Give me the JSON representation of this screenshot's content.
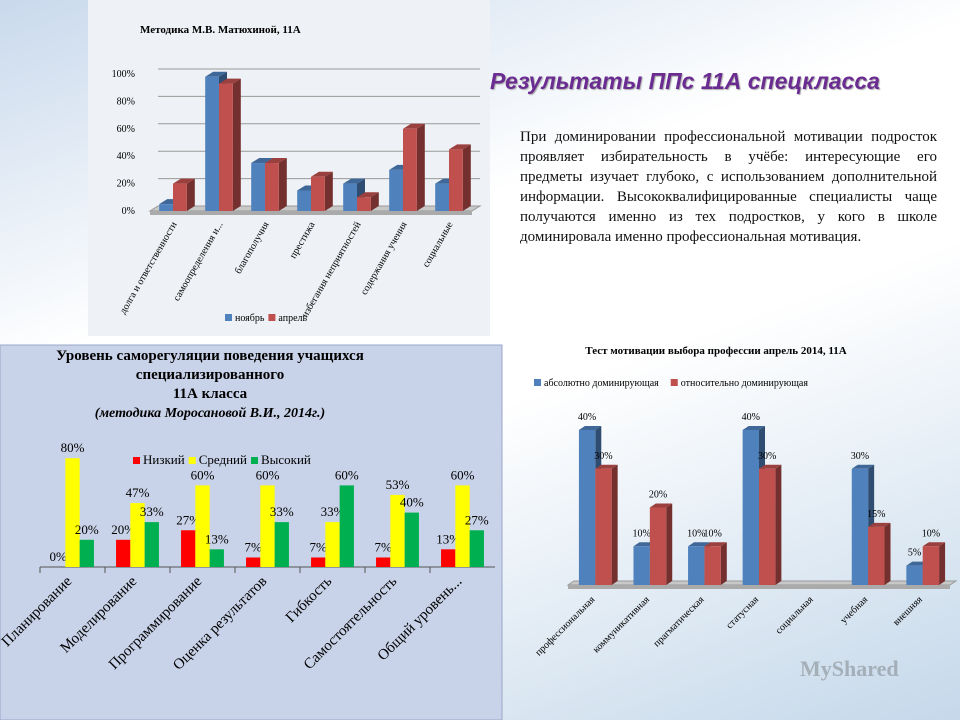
{
  "heading": "Результаты ППс  11А спецкласса",
  "paragraph": "При доминировании профессиональной мотивации подросток проявляет избирательность в учёбе: интересующие его предметы изучает глубоко, с использованием дополнительной информации. Высококвалифицированные специалисты чаще получаются именно из тех подростков, у кого в школе доминировала именно профессиональная мотивация.",
  "watermark": "MyShared",
  "chart_data": [
    {
      "type": "bar3d",
      "title": "Методика М.В. Матюхиной, 11А",
      "categories": [
        "долга и ответственности",
        "самоопределения и...",
        "благополучия",
        "престижа",
        "избегания неприятностей",
        "содержания учения",
        "социальные"
      ],
      "series": [
        {
          "name": "ноябрь",
          "color": "#4f81bd",
          "values": [
            5,
            98,
            35,
            15,
            20,
            30,
            20
          ]
        },
        {
          "name": "апрель",
          "color": "#c0504d",
          "values": [
            20,
            93,
            35,
            25,
            10,
            60,
            45
          ]
        }
      ],
      "ylim": [
        0,
        100
      ],
      "yticks": [
        {
          "value": 0,
          "label": "0%"
        },
        {
          "value": 20,
          "label": "20%"
        },
        {
          "value": 40,
          "label": "40%"
        },
        {
          "value": 60,
          "label": "60%"
        },
        {
          "value": 80,
          "label": "80%"
        },
        {
          "value": 100,
          "label": "100%"
        }
      ],
      "grid": true,
      "legend": "bottom"
    },
    {
      "type": "bar",
      "title": [
        "Уровень саморегуляции поведения учащихся",
        "специализированного",
        "11А  класса"
      ],
      "subtitle": "(методика Моросановой В.И.,      2014г.)",
      "categories": [
        "Планирование",
        "Моделирование",
        "Программирование",
        "Оценка результатов",
        "Гибкость",
        "Самостоятельность",
        "Общий уровень..."
      ],
      "series": [
        {
          "name": "Низкий",
          "color": "#ff0000",
          "values": [
            0,
            20,
            27,
            7,
            7,
            7,
            13
          ],
          "value_labels": [
            "0%",
            "20%",
            "27%",
            "7%",
            "7%",
            "7%",
            "13%"
          ]
        },
        {
          "name": "Средний",
          "color": "#ffff00",
          "values": [
            80,
            47,
            60,
            60,
            33,
            53,
            60
          ],
          "value_labels": [
            "80%",
            "47%",
            "60%",
            "60%",
            "33%",
            "53%",
            "60%"
          ]
        },
        {
          "name": "Высокий",
          "color": "#00b050",
          "values": [
            20,
            33,
            13,
            33,
            60,
            40,
            27
          ],
          "value_labels": [
            "20%",
            "33%",
            "13%",
            "33%",
            "60%",
            "40%",
            "27%"
          ]
        }
      ],
      "ylim": [
        0,
        100
      ],
      "legend": "top-right"
    },
    {
      "type": "bar3d",
      "title": "Тест мотивации выбора профессии апрель 2014, 11А",
      "categories": [
        "профессиональная",
        "коммуникативная",
        "прагматическая",
        "статусная",
        "социальная",
        "учебная",
        "внешняя"
      ],
      "series": [
        {
          "name": "абсолютно доминирующая",
          "color": "#4f81bd",
          "values": [
            40,
            10,
            10,
            40,
            null,
            30,
            5
          ],
          "value_labels": [
            "40%",
            "10%",
            "10%",
            "40%",
            null,
            "30%",
            "5%"
          ]
        },
        {
          "name": "относительно доминирующая",
          "color": "#c0504d",
          "values": [
            30,
            20,
            10,
            30,
            null,
            15,
            10
          ],
          "value_labels": [
            "30%",
            "20%",
            "10%",
            "30%",
            null,
            "15%",
            "10%"
          ]
        }
      ],
      "ylim": [
        0,
        40
      ],
      "legend": "top"
    }
  ]
}
